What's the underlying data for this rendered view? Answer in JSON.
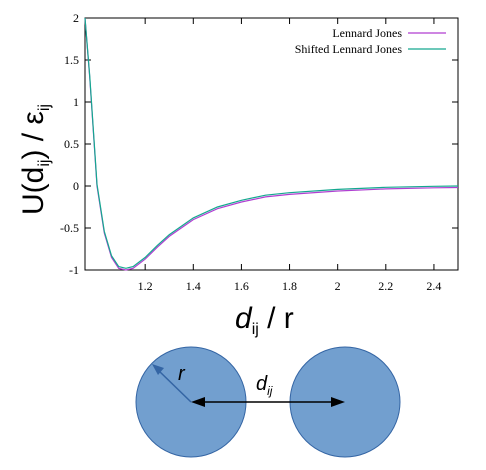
{
  "chart_data": {
    "type": "line",
    "title": "",
    "xlabel": {
      "main": "d",
      "sub": "ij",
      "tail": " / r"
    },
    "ylabel": {
      "main": "U(d",
      "sub1": "ij",
      "mid": ") / ε",
      "sub2": "ij"
    },
    "xlim": [
      0.95,
      2.5
    ],
    "ylim": [
      -1,
      2
    ],
    "xticks": [
      1.2,
      1.4,
      1.6,
      1.8,
      2,
      2.2,
      2.4
    ],
    "xtick_labels": [
      "1.2",
      "1.4",
      "1.6",
      "1.8",
      "2",
      "2.2",
      "2.4"
    ],
    "yticks": [
      2,
      1.5,
      1,
      0.5,
      0,
      -0.5,
      -1
    ],
    "ytick_labels": [
      "2",
      "1.5",
      "1",
      "0.5",
      "0",
      "-0.5",
      "-1"
    ],
    "grid": false,
    "legend_position": "top-right",
    "series": [
      {
        "name": "Lennard Jones",
        "color": "#b03fd1",
        "x": [
          0.95,
          0.97,
          1.0,
          1.03,
          1.06,
          1.09,
          1.12,
          1.15,
          1.2,
          1.25,
          1.3,
          1.4,
          1.5,
          1.6,
          1.7,
          1.8,
          2.0,
          2.2,
          2.4,
          2.5
        ],
        "y": [
          2.0,
          1.28,
          0.0,
          -0.56,
          -0.85,
          -0.98,
          -1.0,
          -0.98,
          -0.87,
          -0.73,
          -0.6,
          -0.4,
          -0.27,
          -0.19,
          -0.13,
          -0.1,
          -0.06,
          -0.035,
          -0.022,
          -0.018
        ]
      },
      {
        "name": "Shifted Lennard Jones",
        "color": "#14a88f",
        "x": [
          0.95,
          0.97,
          1.0,
          1.03,
          1.06,
          1.09,
          1.12,
          1.15,
          1.2,
          1.25,
          1.3,
          1.4,
          1.5,
          1.6,
          1.7,
          1.8,
          2.0,
          2.2,
          2.4,
          2.5
        ],
        "y": [
          2.0,
          1.3,
          0.02,
          -0.54,
          -0.83,
          -0.96,
          -0.98,
          -0.96,
          -0.85,
          -0.71,
          -0.58,
          -0.38,
          -0.25,
          -0.17,
          -0.11,
          -0.08,
          -0.04,
          -0.015,
          -0.004,
          0.0
        ]
      }
    ]
  },
  "diagram": {
    "radius_label": "r",
    "distance_label": {
      "main": "d",
      "sub": "ij"
    },
    "circle_color": "#729fcf",
    "circle_stroke": "#3465a4",
    "arrow_color": "#000000",
    "radius_arrow_color": "#3465a4"
  }
}
